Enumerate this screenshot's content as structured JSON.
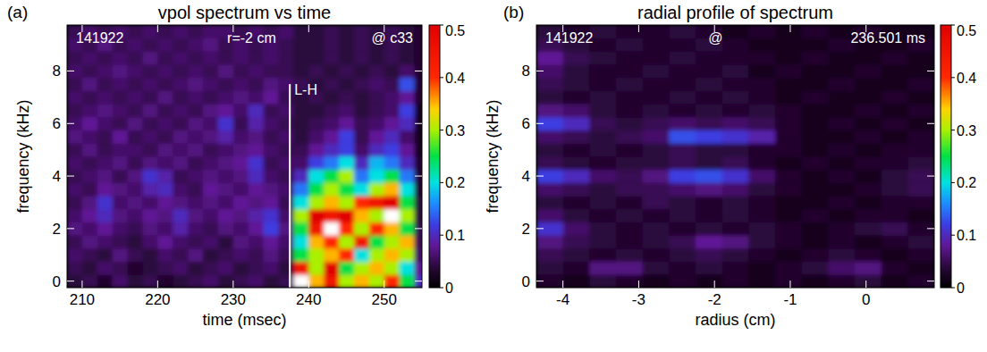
{
  "chart_data": [
    {
      "type": "heatmap",
      "panel": "(a)",
      "title": "vpol spectrum vs time",
      "xlabel": "time (msec)",
      "ylabel": "frequency (kHz)",
      "labels": [
        "141922",
        "r=-2 cm",
        "@ c33"
      ],
      "event": {
        "text": "L-H",
        "x": 237.5,
        "ymax": 7.5
      },
      "xlim": [
        208,
        255
      ],
      "ylim": [
        -0.25,
        9.75
      ],
      "xticks": [
        210,
        220,
        230,
        240,
        250
      ],
      "yticks": [
        0,
        2,
        4,
        6,
        8
      ],
      "zlim": [
        0,
        0.5
      ],
      "zticks": [
        0,
        0.1,
        0.2,
        0.3,
        0.4,
        0.5
      ],
      "x": [
        209,
        211,
        213,
        215,
        217,
        219,
        221,
        223,
        225,
        227,
        229,
        231,
        233,
        235,
        237,
        239,
        241,
        243,
        245,
        247,
        249,
        251,
        253,
        255
      ],
      "y": [
        0,
        0.5,
        1,
        1.5,
        2,
        2.5,
        3,
        3.5,
        4,
        4.5,
        5,
        5.5,
        6,
        6.5,
        7,
        7.5,
        8,
        8.5,
        9,
        9.5
      ],
      "z": [
        [
          0.04,
          0.05,
          0.03,
          0.06,
          0.04,
          0.05,
          0.03,
          0.04,
          0.05,
          0.06,
          0.04,
          0.05,
          0.06,
          0.04,
          0.05,
          0.55,
          0.35,
          0.45,
          0.3,
          0.35,
          0.3,
          0.4,
          0.25,
          0.1
        ],
        [
          0.05,
          0.04,
          0.06,
          0.05,
          0.03,
          0.04,
          0.05,
          0.06,
          0.04,
          0.05,
          0.06,
          0.04,
          0.05,
          0.06,
          0.04,
          0.45,
          0.3,
          0.5,
          0.25,
          0.3,
          0.35,
          0.3,
          0.2,
          0.08
        ],
        [
          0.06,
          0.05,
          0.04,
          0.07,
          0.05,
          0.04,
          0.06,
          0.05,
          0.07,
          0.04,
          0.05,
          0.06,
          0.05,
          0.07,
          0.05,
          0.25,
          0.3,
          0.35,
          0.4,
          0.2,
          0.3,
          0.35,
          0.3,
          0.06
        ],
        [
          0.05,
          0.07,
          0.06,
          0.05,
          0.04,
          0.06,
          0.08,
          0.06,
          0.05,
          0.06,
          0.04,
          0.07,
          0.06,
          0.08,
          0.06,
          0.2,
          0.35,
          0.4,
          0.3,
          0.45,
          0.25,
          0.3,
          0.35,
          0.05
        ],
        [
          0.07,
          0.06,
          0.08,
          0.06,
          0.05,
          0.07,
          0.06,
          0.09,
          0.06,
          0.05,
          0.07,
          0.06,
          0.08,
          0.12,
          0.07,
          0.25,
          0.45,
          0.55,
          0.4,
          0.3,
          0.4,
          0.35,
          0.25,
          0.05
        ],
        [
          0.06,
          0.08,
          0.1,
          0.07,
          0.06,
          0.08,
          0.07,
          0.1,
          0.07,
          0.06,
          0.08,
          0.07,
          0.09,
          0.11,
          0.06,
          0.3,
          0.5,
          0.45,
          0.5,
          0.35,
          0.3,
          0.55,
          0.3,
          0.04
        ],
        [
          0.05,
          0.07,
          0.11,
          0.06,
          0.07,
          0.06,
          0.08,
          0.07,
          0.06,
          0.07,
          0.06,
          0.08,
          0.07,
          0.08,
          0.05,
          0.2,
          0.3,
          0.35,
          0.3,
          0.4,
          0.45,
          0.5,
          0.25,
          0.04
        ],
        [
          0.06,
          0.05,
          0.08,
          0.07,
          0.06,
          0.09,
          0.1,
          0.06,
          0.05,
          0.08,
          0.07,
          0.06,
          0.08,
          0.07,
          0.06,
          0.15,
          0.25,
          0.3,
          0.25,
          0.2,
          0.3,
          0.35,
          0.2,
          0.03
        ],
        [
          0.05,
          0.06,
          0.07,
          0.05,
          0.07,
          0.11,
          0.09,
          0.05,
          0.06,
          0.07,
          0.06,
          0.07,
          0.1,
          0.06,
          0.05,
          0.1,
          0.2,
          0.25,
          0.3,
          0.15,
          0.2,
          0.25,
          0.15,
          0.03
        ],
        [
          0.06,
          0.05,
          0.06,
          0.07,
          0.05,
          0.07,
          0.06,
          0.07,
          0.05,
          0.06,
          0.07,
          0.08,
          0.11,
          0.05,
          0.06,
          0.06,
          0.12,
          0.15,
          0.2,
          0.1,
          0.18,
          0.15,
          0.1,
          0.03
        ],
        [
          0.05,
          0.07,
          0.05,
          0.06,
          0.06,
          0.05,
          0.07,
          0.06,
          0.07,
          0.05,
          0.06,
          0.07,
          0.08,
          0.06,
          0.05,
          0.05,
          0.08,
          0.1,
          0.12,
          0.06,
          0.1,
          0.12,
          0.08,
          0.02
        ],
        [
          0.07,
          0.06,
          0.05,
          0.08,
          0.05,
          0.06,
          0.05,
          0.07,
          0.06,
          0.07,
          0.09,
          0.06,
          0.07,
          0.05,
          0.06,
          0.04,
          0.06,
          0.08,
          0.12,
          0.05,
          0.08,
          0.1,
          0.06,
          0.02
        ],
        [
          0.06,
          0.08,
          0.06,
          0.05,
          0.07,
          0.05,
          0.06,
          0.05,
          0.07,
          0.06,
          0.11,
          0.05,
          0.09,
          0.06,
          0.05,
          0.04,
          0.05,
          0.06,
          0.08,
          0.05,
          0.06,
          0.08,
          0.1,
          0.02
        ],
        [
          0.05,
          0.06,
          0.07,
          0.06,
          0.05,
          0.07,
          0.05,
          0.06,
          0.05,
          0.07,
          0.08,
          0.06,
          0.1,
          0.05,
          0.06,
          0.04,
          0.04,
          0.05,
          0.06,
          0.04,
          0.05,
          0.06,
          0.12,
          0.02
        ],
        [
          0.06,
          0.05,
          0.06,
          0.05,
          0.06,
          0.05,
          0.07,
          0.05,
          0.06,
          0.05,
          0.06,
          0.07,
          0.06,
          0.08,
          0.05,
          0.04,
          0.05,
          0.04,
          0.05,
          0.04,
          0.05,
          0.06,
          0.08,
          0.03
        ],
        [
          0.05,
          0.07,
          0.05,
          0.06,
          0.05,
          0.06,
          0.05,
          0.06,
          0.07,
          0.06,
          0.05,
          0.06,
          0.05,
          0.07,
          0.06,
          0.05,
          0.04,
          0.05,
          0.04,
          0.05,
          0.06,
          0.05,
          0.13,
          0.03
        ],
        [
          0.06,
          0.05,
          0.06,
          0.07,
          0.06,
          0.05,
          0.06,
          0.05,
          0.06,
          0.05,
          0.07,
          0.05,
          0.06,
          0.05,
          0.05,
          0.04,
          0.05,
          0.04,
          0.05,
          0.04,
          0.05,
          0.04,
          0.06,
          0.03
        ],
        [
          0.05,
          0.06,
          0.05,
          0.06,
          0.05,
          0.07,
          0.05,
          0.06,
          0.05,
          0.06,
          0.05,
          0.06,
          0.05,
          0.06,
          0.05,
          0.04,
          0.04,
          0.05,
          0.04,
          0.05,
          0.04,
          0.05,
          0.04,
          0.03
        ],
        [
          0.06,
          0.05,
          0.07,
          0.05,
          0.06,
          0.05,
          0.06,
          0.05,
          0.06,
          0.07,
          0.05,
          0.06,
          0.05,
          0.06,
          0.05,
          0.04,
          0.04,
          0.05,
          0.04,
          0.05,
          0.04,
          0.05,
          0.04,
          0.03
        ],
        [
          0.05,
          0.06,
          0.05,
          0.06,
          0.05,
          0.06,
          0.05,
          0.06,
          0.05,
          0.06,
          0.06,
          0.05,
          0.06,
          0.05,
          0.06,
          0.04,
          0.04,
          0.05,
          0.04,
          0.05,
          0.04,
          0.05,
          0.04,
          0.03
        ]
      ]
    },
    {
      "type": "heatmap",
      "panel": "(b)",
      "title": "radial profile of spectrum",
      "xlabel": "radius (cm)",
      "ylabel": "frequency (kHz)",
      "labels": [
        "141922",
        "@",
        "236.501 ms"
      ],
      "xlim": [
        -4.35,
        0.9
      ],
      "ylim": [
        -0.25,
        9.75
      ],
      "xticks": [
        -4,
        -3,
        -2,
        -1,
        0
      ],
      "yticks": [
        0,
        2,
        4,
        6,
        8
      ],
      "zlim": [
        0,
        0.5
      ],
      "zticks": [
        0,
        0.1,
        0.2,
        0.3,
        0.4,
        0.5
      ],
      "x": [
        -4.175,
        -3.825,
        -3.475,
        -3.125,
        -2.775,
        -2.425,
        -2.075,
        -1.725,
        -1.375,
        -1.025,
        -0.675,
        -0.325,
        0.025,
        0.375,
        0.725
      ],
      "y": [
        0,
        0.5,
        1,
        1.5,
        2,
        2.5,
        3,
        3.5,
        4,
        4.5,
        5,
        5.5,
        6,
        6.5,
        7,
        7.5,
        8,
        8.5,
        9,
        9.5
      ],
      "z": [
        [
          0.03,
          0.02,
          0.04,
          0.03,
          0.02,
          0.03,
          0.02,
          0.03,
          0.02,
          0.03,
          0.02,
          0.03,
          0.04,
          0.02,
          0.03
        ],
        [
          0.04,
          0.03,
          0.07,
          0.07,
          0.04,
          0.03,
          0.04,
          0.03,
          0.02,
          0.03,
          0.04,
          0.06,
          0.07,
          0.03,
          0.02
        ],
        [
          0.05,
          0.04,
          0.03,
          0.04,
          0.03,
          0.04,
          0.05,
          0.04,
          0.03,
          0.02,
          0.03,
          0.04,
          0.03,
          0.02,
          0.03
        ],
        [
          0.07,
          0.05,
          0.04,
          0.03,
          0.04,
          0.05,
          0.08,
          0.07,
          0.04,
          0.03,
          0.02,
          0.03,
          0.02,
          0.03,
          0.04
        ],
        [
          0.11,
          0.06,
          0.04,
          0.03,
          0.04,
          0.03,
          0.04,
          0.03,
          0.04,
          0.03,
          0.02,
          0.03,
          0.04,
          0.05,
          0.03
        ],
        [
          0.06,
          0.04,
          0.03,
          0.04,
          0.03,
          0.04,
          0.03,
          0.04,
          0.03,
          0.02,
          0.03,
          0.02,
          0.03,
          0.03,
          0.02
        ],
        [
          0.04,
          0.03,
          0.04,
          0.03,
          0.05,
          0.04,
          0.03,
          0.04,
          0.03,
          0.02,
          0.02,
          0.03,
          0.02,
          0.03,
          0.03
        ],
        [
          0.06,
          0.05,
          0.04,
          0.05,
          0.05,
          0.06,
          0.07,
          0.06,
          0.04,
          0.03,
          0.02,
          0.02,
          0.03,
          0.04,
          0.05
        ],
        [
          0.12,
          0.1,
          0.06,
          0.05,
          0.07,
          0.12,
          0.13,
          0.11,
          0.06,
          0.03,
          0.02,
          0.03,
          0.02,
          0.04,
          0.05
        ],
        [
          0.05,
          0.04,
          0.03,
          0.04,
          0.04,
          0.05,
          0.04,
          0.05,
          0.03,
          0.02,
          0.03,
          0.02,
          0.03,
          0.03,
          0.04
        ],
        [
          0.04,
          0.03,
          0.04,
          0.03,
          0.04,
          0.05,
          0.04,
          0.04,
          0.03,
          0.03,
          0.02,
          0.03,
          0.02,
          0.03,
          0.03
        ],
        [
          0.06,
          0.05,
          0.04,
          0.05,
          0.06,
          0.13,
          0.12,
          0.11,
          0.09,
          0.03,
          0.02,
          0.02,
          0.03,
          0.02,
          0.03
        ],
        [
          0.12,
          0.1,
          0.05,
          0.04,
          0.05,
          0.06,
          0.05,
          0.06,
          0.05,
          0.03,
          0.02,
          0.03,
          0.02,
          0.03,
          0.02
        ],
        [
          0.07,
          0.06,
          0.04,
          0.03,
          0.04,
          0.03,
          0.04,
          0.03,
          0.04,
          0.03,
          0.02,
          0.02,
          0.03,
          0.02,
          0.03
        ],
        [
          0.04,
          0.03,
          0.04,
          0.03,
          0.03,
          0.04,
          0.03,
          0.04,
          0.03,
          0.02,
          0.03,
          0.02,
          0.02,
          0.03,
          0.02
        ],
        [
          0.05,
          0.04,
          0.03,
          0.04,
          0.03,
          0.03,
          0.04,
          0.03,
          0.03,
          0.02,
          0.02,
          0.03,
          0.02,
          0.02,
          0.03
        ],
        [
          0.06,
          0.04,
          0.03,
          0.03,
          0.04,
          0.03,
          0.03,
          0.04,
          0.02,
          0.03,
          0.02,
          0.02,
          0.03,
          0.02,
          0.02
        ],
        [
          0.08,
          0.05,
          0.04,
          0.03,
          0.03,
          0.04,
          0.03,
          0.03,
          0.03,
          0.02,
          0.03,
          0.02,
          0.02,
          0.03,
          0.02
        ],
        [
          0.05,
          0.04,
          0.03,
          0.04,
          0.03,
          0.03,
          0.04,
          0.03,
          0.02,
          0.02,
          0.02,
          0.03,
          0.02,
          0.02,
          0.03
        ],
        [
          0.04,
          0.03,
          0.04,
          0.03,
          0.03,
          0.04,
          0.03,
          0.02,
          0.03,
          0.02,
          0.03,
          0.02,
          0.03,
          0.02,
          0.02
        ]
      ]
    }
  ]
}
